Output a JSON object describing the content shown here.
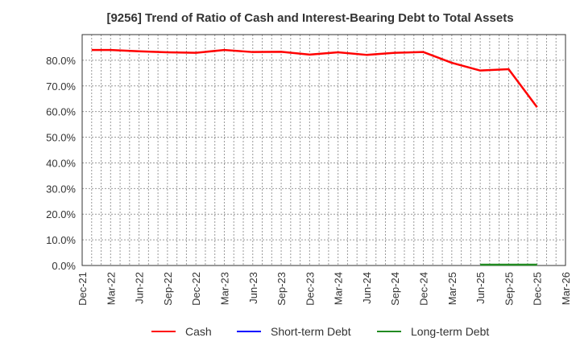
{
  "chart_data": {
    "type": "line",
    "title": "[9256]  Trend of Ratio of Cash and Interest-Bearing Debt to Total Assets",
    "xlabel": "",
    "ylabel": "",
    "ylim": [
      0,
      90
    ],
    "yticks": [
      "0.0%",
      "10.0%",
      "20.0%",
      "30.0%",
      "40.0%",
      "50.0%",
      "60.0%",
      "70.0%",
      "80.0%"
    ],
    "xticks": [
      "Dec-21",
      "Mar-22",
      "Jun-22",
      "Sep-22",
      "Dec-22",
      "Mar-23",
      "Jun-23",
      "Sep-23",
      "Dec-23",
      "Mar-24",
      "Jun-24",
      "Sep-24",
      "Dec-24",
      "Mar-25",
      "Jun-25",
      "Sep-25",
      "Dec-25",
      "Mar-26"
    ],
    "grid": true,
    "legend_position": "bottom",
    "x": [
      "Jan-22",
      "Mar-22",
      "Jun-22",
      "Sep-22",
      "Dec-22",
      "Mar-23",
      "Jun-23",
      "Sep-23",
      "Dec-23",
      "Mar-24",
      "Jun-24",
      "Sep-24",
      "Dec-24",
      "Mar-25",
      "Jun-25",
      "Sep-25",
      "Dec-25"
    ],
    "series": [
      {
        "name": "Cash",
        "color": "#ff0000",
        "values": [
          84.0,
          84.0,
          83.5,
          83.1,
          82.9,
          84.0,
          83.2,
          83.3,
          82.2,
          83.1,
          82.1,
          82.9,
          83.2,
          79.0,
          76.0,
          76.5,
          61.7
        ]
      },
      {
        "name": "Short-term Debt",
        "color": "#0000ff",
        "values": [
          null,
          null,
          null,
          null,
          null,
          null,
          null,
          null,
          null,
          null,
          null,
          null,
          null,
          null,
          null,
          null,
          null
        ]
      },
      {
        "name": "Long-term Debt",
        "color": "#228b22",
        "values": [
          null,
          null,
          null,
          null,
          null,
          null,
          null,
          null,
          null,
          null,
          null,
          null,
          null,
          null,
          0.3,
          0.3,
          0.3
        ]
      }
    ]
  },
  "legend": {
    "items": [
      {
        "label": "Cash",
        "color": "#ff0000"
      },
      {
        "label": "Short-term Debt",
        "color": "#0000ff"
      },
      {
        "label": "Long-term Debt",
        "color": "#228b22"
      }
    ]
  }
}
